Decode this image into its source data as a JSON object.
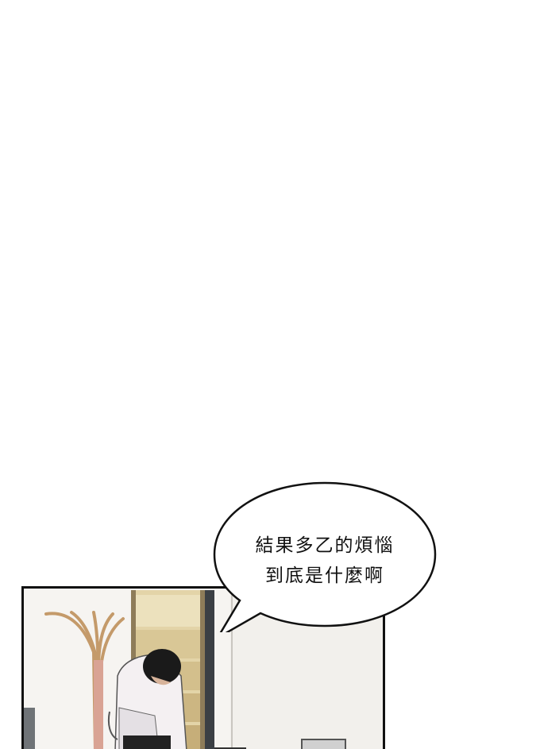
{
  "dialogue": {
    "line1": "結果多乙的煩惱",
    "line2": "到底是什麼啊"
  },
  "colors": {
    "background": "#ffffff",
    "panel_border": "#111111",
    "wall": "#f5f3ef",
    "shelf": "#d8c79c",
    "shirt": "#f4f0f2",
    "hair": "#1a1a1a"
  }
}
